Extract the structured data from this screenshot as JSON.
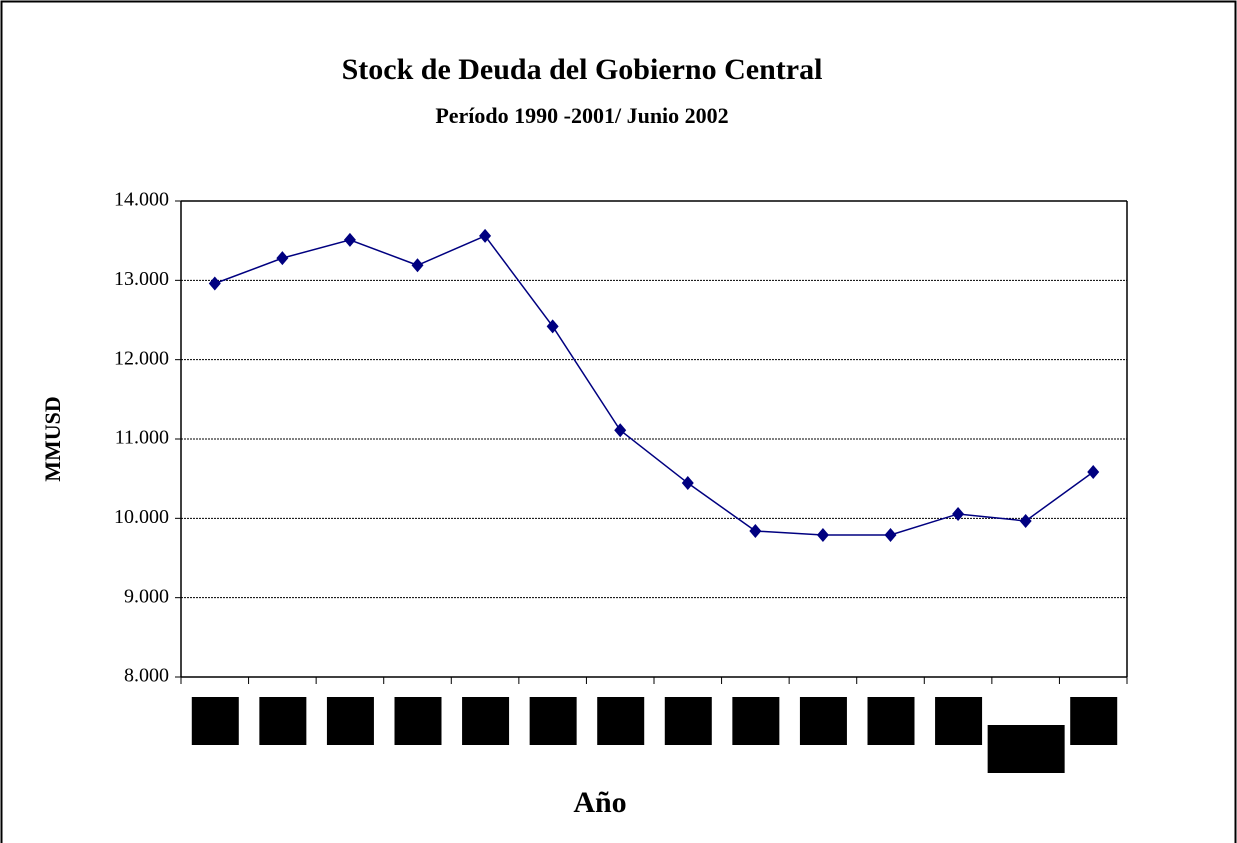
{
  "chart_data": {
    "type": "line",
    "title": "Stock de Deuda del Gobierno Central",
    "subtitle": "Período 1990 -2001/ Junio 2002",
    "x_label": "Año",
    "y_label": "MMUSD",
    "categories": [
      null,
      null,
      null,
      null,
      null,
      null,
      null,
      null,
      null,
      null,
      null,
      null,
      null,
      null
    ],
    "values": [
      12960,
      13280,
      13510,
      13190,
      13560,
      12420,
      11110,
      10445,
      9840,
      9790,
      9790,
      10055,
      9967,
      10584
    ],
    "color": "#000080",
    "ylim": [
      8000,
      14000
    ],
    "yticks": [
      {
        "value": 8000,
        "label": "8.000"
      },
      {
        "value": 9000,
        "label": "9.000"
      },
      {
        "value": 10000,
        "label": "10.000"
      },
      {
        "value": 11000,
        "label": "11.000"
      },
      {
        "value": 12000,
        "label": "12.000"
      },
      {
        "value": 13000,
        "label": "13.000"
      },
      {
        "value": 14000,
        "label": "14.000"
      }
    ],
    "grid": true
  }
}
